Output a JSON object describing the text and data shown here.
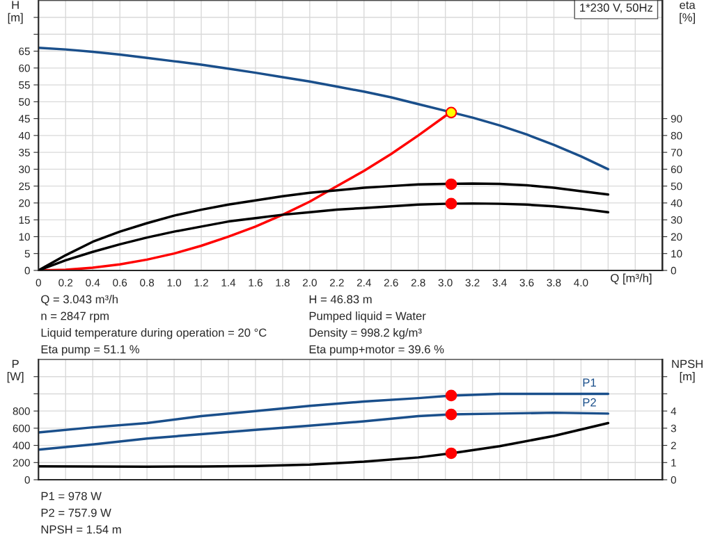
{
  "chart_data": [
    {
      "type": "line",
      "xlabel": "Q [m³/h]",
      "ylabel": "H\n[m]",
      "y2label": "eta\n[%]",
      "xlim": [
        0,
        4.6
      ],
      "xticks": [
        0,
        0.2,
        0.4,
        0.6,
        0.8,
        "1.0",
        1.2,
        1.4,
        1.6,
        1.8,
        "2.0",
        2.2,
        2.4,
        2.6,
        2.8,
        "3.0",
        3.2,
        3.4,
        3.6,
        3.8,
        "4.0",
        {
          "value": 4.2,
          "label": null
        },
        {
          "value": 4.4,
          "label": null
        }
      ],
      "ylim": [
        0,
        80
      ],
      "yticks": [
        0,
        5,
        10,
        15,
        20,
        25,
        30,
        35,
        40,
        45,
        50,
        55,
        60,
        65,
        {
          "value": 70,
          "label": null
        },
        {
          "value": 75,
          "label": null
        }
      ],
      "y2lim": [
        0,
        160
      ],
      "y2ticks": [
        0,
        10,
        20,
        30,
        40,
        50,
        60,
        70,
        80,
        90
      ],
      "grid": true,
      "series": [
        {
          "color": "#1a4f8b",
          "x": [
            0,
            0.2,
            0.4,
            0.6,
            0.8,
            1.0,
            1.2,
            1.4,
            1.6,
            1.8,
            2.0,
            2.2,
            2.4,
            2.6,
            2.8,
            3.0,
            3.2,
            3.4,
            3.6,
            3.8,
            4.0,
            4.2
          ],
          "values": [
            66,
            65.5,
            64.8,
            64,
            63,
            62,
            61,
            59.8,
            58.6,
            57.3,
            56,
            54.5,
            53,
            51.3,
            49.3,
            47.3,
            45.3,
            43,
            40.3,
            37.2,
            33.8,
            30
          ]
        },
        {
          "color": "#000000",
          "axis": "y2",
          "x": [
            0,
            0.2,
            0.4,
            0.6,
            0.8,
            1.0,
            1.2,
            1.4,
            1.6,
            1.8,
            2.0,
            2.2,
            2.4,
            2.6,
            2.8,
            3.0,
            3.2,
            3.4,
            3.6,
            3.8,
            4.0,
            4.2
          ],
          "values": [
            0,
            9,
            17,
            23,
            28,
            32.5,
            36,
            39,
            41.5,
            44,
            46,
            47.5,
            49,
            50,
            51,
            51.3,
            51.5,
            51.3,
            50.5,
            49,
            47,
            45
          ]
        },
        {
          "color": "#000000",
          "axis": "y2",
          "x": [
            0,
            0.2,
            0.4,
            0.6,
            0.8,
            1.0,
            1.2,
            1.4,
            1.6,
            1.8,
            2.0,
            2.2,
            2.4,
            2.6,
            2.8,
            3.0,
            3.2,
            3.4,
            3.6,
            3.8,
            4.0,
            4.2
          ],
          "values": [
            0,
            6,
            11,
            15.5,
            19.5,
            23,
            26,
            29,
            31,
            33,
            34.5,
            36,
            37,
            38,
            39,
            39.5,
            39.7,
            39.5,
            39,
            38,
            36.5,
            34.5
          ]
        },
        {
          "color": "#ff0000",
          "x": [
            0,
            0.2,
            0.4,
            0.6,
            0.8,
            1.0,
            1.2,
            1.4,
            1.6,
            1.8,
            2.0,
            2.2,
            2.4,
            2.6,
            2.8,
            3.0,
            3.043
          ],
          "values": [
            0,
            0.2,
            0.8,
            1.8,
            3.2,
            5,
            7.3,
            10,
            13,
            16.5,
            20.4,
            25,
            29.5,
            34.5,
            40,
            45.8,
            46.8
          ]
        },
        {
          "type": "scatter",
          "marker": "circle",
          "color": "#ffff00",
          "x": [
            3.043
          ],
          "values": [
            46.8
          ]
        },
        {
          "type": "scatter",
          "marker": "circle",
          "color": "#ff0000",
          "axis": "y2",
          "x": [
            3.043,
            3.043
          ],
          "values": [
            51.1,
            39.6
          ]
        }
      ],
      "annotations": [
        "1*230 V, 50Hz",
        "Q = 3.043 m³/h",
        "n = 2847 rpm",
        "Liquid temperature during operation = 20 °C",
        "Eta pump = 51.1 %",
        "H = 46.83 m",
        "Pumped liquid = Water",
        "Density = 998.2 kg/m³",
        "Eta pump+motor = 39.6 %"
      ]
    },
    {
      "type": "line",
      "ylabel": "P\n[W]",
      "y2label": "NPSH\n[m]",
      "tick_labels": "y",
      "xlim": [
        0,
        4.6
      ],
      "xticks": [
        0,
        0.2,
        0.4,
        0.6,
        0.8,
        1.0,
        1.2,
        1.4,
        1.6,
        1.8,
        2.0,
        2.2,
        2.4,
        2.6,
        2.8,
        3.0,
        3.2,
        3.4,
        3.6,
        3.8,
        4.0,
        4.2,
        4.4
      ],
      "ylim": [
        0,
        1400
      ],
      "yticks": [
        0,
        200,
        400,
        600,
        800,
        {
          "value": 1000,
          "label": null
        },
        {
          "value": 1200,
          "label": null
        }
      ],
      "y2lim": [
        0,
        7
      ],
      "y2ticks": [
        0,
        1,
        2,
        3,
        4,
        {
          "value": 5,
          "label": null
        },
        {
          "value": 6,
          "label": null
        }
      ],
      "grid": true,
      "series": [
        {
          "name": "P1",
          "color": "#1a4f8b",
          "x": [
            0,
            0.4,
            0.8,
            1.2,
            1.6,
            2.0,
            2.4,
            2.8,
            3.043,
            3.4,
            3.8,
            4.2
          ],
          "values": [
            550,
            610,
            660,
            740,
            800,
            860,
            910,
            950,
            980,
            1000,
            1000,
            1000
          ]
        },
        {
          "name": "P2",
          "color": "#1a4f8b",
          "x": [
            0,
            0.4,
            0.8,
            1.2,
            1.6,
            2.0,
            2.4,
            2.8,
            3.043,
            3.4,
            3.8,
            4.2
          ],
          "values": [
            350,
            410,
            480,
            530,
            580,
            630,
            680,
            740,
            760,
            770,
            780,
            770
          ]
        },
        {
          "color": "#000000",
          "axis": "y2",
          "x": [
            0,
            0.4,
            0.8,
            1.2,
            1.6,
            2.0,
            2.4,
            2.8,
            3.043,
            3.4,
            3.8,
            4.2
          ],
          "values": [
            0.78,
            0.77,
            0.76,
            0.77,
            0.8,
            0.88,
            1.05,
            1.3,
            1.54,
            1.95,
            2.55,
            3.3
          ]
        },
        {
          "type": "scatter",
          "marker": "circle",
          "color": "#ff0000",
          "x": [
            3.043,
            3.043
          ],
          "values": [
            980,
            760
          ]
        },
        {
          "type": "scatter",
          "marker": "circle",
          "color": "#ff0000",
          "axis": "y2",
          "x": [
            3.043
          ],
          "values": [
            1.54
          ]
        }
      ],
      "annotations": [
        "P1 = 978 W",
        "P2 = 757.9 W",
        "NPSH = 1.54 m"
      ]
    }
  ]
}
